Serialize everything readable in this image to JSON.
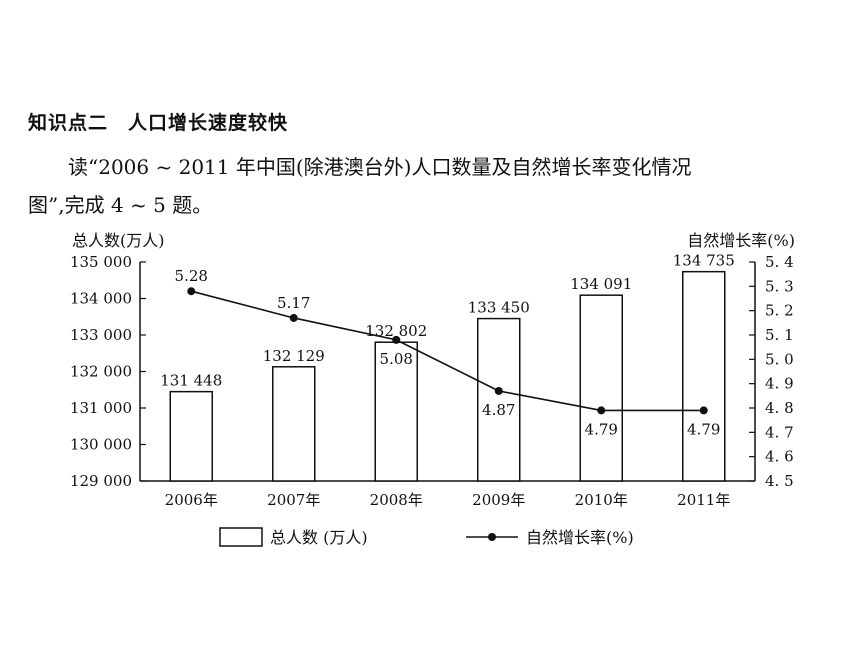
{
  "heading": "知识点二　人口增长速度较快",
  "paragraph": {
    "line1": "读“2006 ~ 2011 年中国(除港澳台外)人口数量及自然增长率变化情况",
    "line2": "图”,完成 4 ~ 5 题。"
  },
  "chart_data": {
    "type": "bar+line",
    "categories": [
      "2006年",
      "2007年",
      "2008年",
      "2009年",
      "2010年",
      "2011年"
    ],
    "series": [
      {
        "name": "总人数 (万人)",
        "type": "bar",
        "axis": "left",
        "values": [
          131448,
          132129,
          132802,
          133450,
          134091,
          134735
        ],
        "labels": [
          "131 448",
          "132 129",
          "132 802",
          "133 450",
          "134 091",
          "134 735"
        ]
      },
      {
        "name": "自然增长率(%)",
        "type": "line",
        "axis": "right",
        "values": [
          5.28,
          5.17,
          5.08,
          4.87,
          4.79,
          4.79
        ],
        "labels": [
          "5.28",
          "5.17",
          "5.08",
          "4.87",
          "4.79",
          "4.79"
        ]
      }
    ],
    "ylabel_left": "总人数(万人)",
    "ylabel_right": "自然增长率(%)",
    "ylim_left": [
      129000,
      135000
    ],
    "ylim_right": [
      4.5,
      5.4
    ],
    "yticks_left": [
      "129 000",
      "130 000",
      "131 000",
      "132 000",
      "133 000",
      "134 000",
      "135 000"
    ],
    "yticks_left_values": [
      129000,
      130000,
      131000,
      132000,
      133000,
      134000,
      135000
    ],
    "yticks_right": [
      "4. 5",
      "4. 6",
      "4. 7",
      "4. 8",
      "4. 9",
      "5. 0",
      "5. 1",
      "5. 2",
      "5. 3",
      "5. 4"
    ],
    "yticks_right_values": [
      4.5,
      4.6,
      4.7,
      4.8,
      4.9,
      5.0,
      5.1,
      5.2,
      5.3,
      5.4
    ],
    "legend_position": "bottom",
    "grid": false
  }
}
